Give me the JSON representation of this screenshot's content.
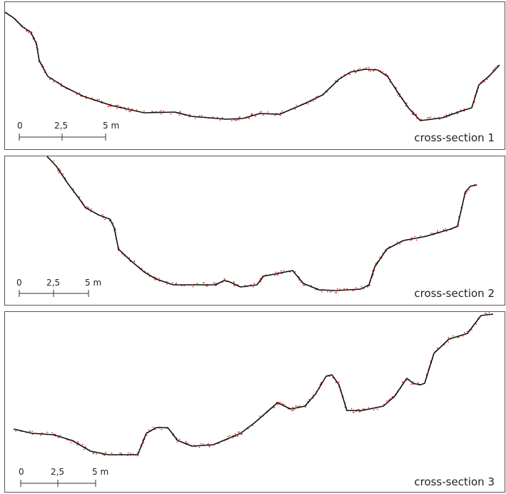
{
  "figure": {
    "panels": [
      {
        "label": "cross-section 1",
        "scale_ticks": [
          "0",
          "2,5",
          "5 m"
        ],
        "profile": [
          [
            0,
            14
          ],
          [
            12,
            22
          ],
          [
            25,
            35
          ],
          [
            36,
            42
          ],
          [
            44,
            58
          ],
          [
            48,
            82
          ],
          [
            60,
            104
          ],
          [
            82,
            118
          ],
          [
            110,
            132
          ],
          [
            150,
            145
          ],
          [
            195,
            155
          ],
          [
            238,
            154
          ],
          [
            262,
            160
          ],
          [
            310,
            164
          ],
          [
            333,
            163
          ],
          [
            357,
            156
          ],
          [
            385,
            157
          ],
          [
            418,
            143
          ],
          [
            445,
            130
          ],
          [
            468,
            108
          ],
          [
            484,
            98
          ],
          [
            505,
            94
          ],
          [
            522,
            95
          ],
          [
            536,
            104
          ],
          [
            550,
            126
          ],
          [
            566,
            149
          ],
          [
            582,
            166
          ],
          [
            613,
            162
          ],
          [
            641,
            152
          ],
          [
            654,
            148
          ],
          [
            664,
            116
          ],
          [
            680,
            102
          ],
          [
            693,
            88
          ]
        ]
      },
      {
        "label": "cross-section 2",
        "scale_ticks": [
          "0",
          "2,5",
          "5 m"
        ],
        "profile": [
          [
            59,
            0
          ],
          [
            72,
            14
          ],
          [
            88,
            38
          ],
          [
            103,
            58
          ],
          [
            113,
            72
          ],
          [
            131,
            82
          ],
          [
            147,
            88
          ],
          [
            153,
            100
          ],
          [
            159,
            130
          ],
          [
            176,
            146
          ],
          [
            195,
            162
          ],
          [
            212,
            172
          ],
          [
            236,
            180
          ],
          [
            295,
            180
          ],
          [
            307,
            174
          ],
          [
            315,
            176
          ],
          [
            330,
            183
          ],
          [
            353,
            180
          ],
          [
            362,
            168
          ],
          [
            403,
            160
          ],
          [
            418,
            178
          ],
          [
            440,
            187
          ],
          [
            464,
            188
          ],
          [
            498,
            186
          ],
          [
            510,
            180
          ],
          [
            518,
            155
          ],
          [
            535,
            130
          ],
          [
            558,
            118
          ],
          [
            590,
            112
          ],
          [
            624,
            102
          ],
          [
            634,
            98
          ],
          [
            645,
            50
          ],
          [
            652,
            42
          ],
          [
            661,
            40
          ]
        ]
      },
      {
        "label": "cross-section 3",
        "scale_ticks": [
          "0",
          "2,5",
          "5 m"
        ],
        "profile": [
          [
            12,
            164
          ],
          [
            38,
            170
          ],
          [
            68,
            172
          ],
          [
            94,
            180
          ],
          [
            120,
            195
          ],
          [
            145,
            200
          ],
          [
            186,
            200
          ],
          [
            198,
            170
          ],
          [
            212,
            162
          ],
          [
            228,
            162
          ],
          [
            242,
            180
          ],
          [
            262,
            188
          ],
          [
            292,
            186
          ],
          [
            330,
            170
          ],
          [
            350,
            155
          ],
          [
            382,
            127
          ],
          [
            400,
            136
          ],
          [
            420,
            132
          ],
          [
            435,
            115
          ],
          [
            450,
            90
          ],
          [
            458,
            88
          ],
          [
            468,
            102
          ],
          [
            479,
            138
          ],
          [
            500,
            138
          ],
          [
            530,
            132
          ],
          [
            546,
            118
          ],
          [
            563,
            93
          ],
          [
            572,
            100
          ],
          [
            582,
            102
          ],
          [
            588,
            100
          ],
          [
            601,
            58
          ],
          [
            622,
            38
          ],
          [
            648,
            30
          ],
          [
            667,
            5
          ],
          [
            684,
            3
          ]
        ]
      }
    ]
  }
}
